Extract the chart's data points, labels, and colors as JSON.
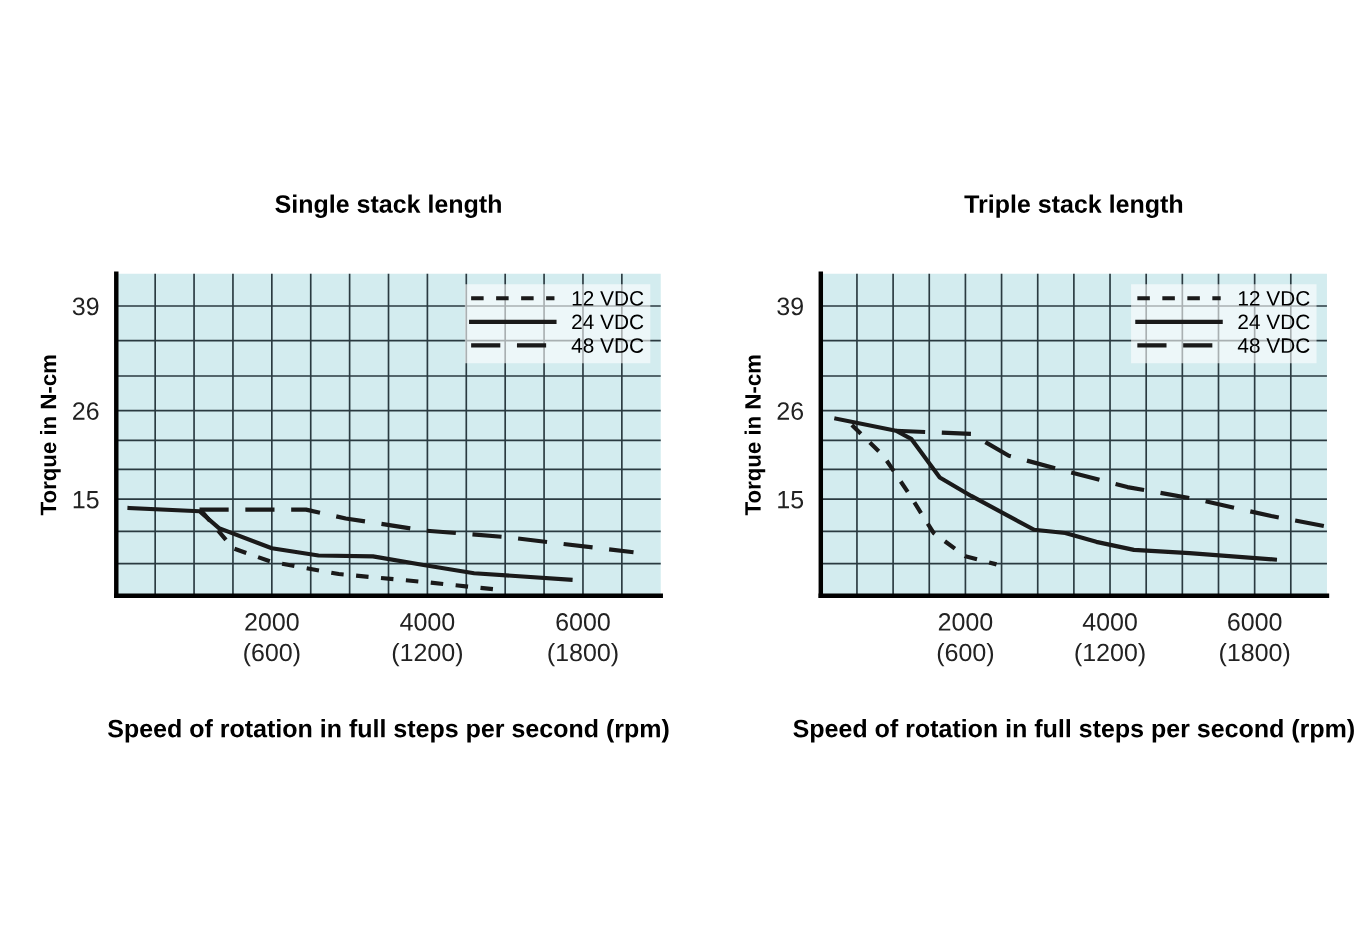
{
  "chart_data": [
    {
      "type": "line",
      "title": "Single stack length",
      "xlabel": "Speed of rotation in full steps per second (rpm)",
      "ylabel": "Torque in N-cm",
      "xlim": [
        0,
        7000
      ],
      "ylim": [
        3,
        43
      ],
      "xticks": [
        {
          "value": 500,
          "label": null
        },
        {
          "value": 1000,
          "label": null
        },
        {
          "value": 1500,
          "label": null
        },
        2000,
        {
          "value": 2500,
          "label": null
        },
        {
          "value": 3000,
          "label": null
        },
        {
          "value": 3500,
          "label": null
        },
        4000,
        {
          "value": 4500,
          "label": null
        },
        {
          "value": 5000,
          "label": null
        },
        {
          "value": 5500,
          "label": null
        },
        6000,
        {
          "value": 6500,
          "label": null
        }
      ],
      "x2lim": [
        0,
        2100
      ],
      "x2ticks": [
        {
          "value": 600,
          "label": "(600)"
        },
        {
          "value": 1200,
          "label": "(1200)"
        },
        {
          "value": 1800,
          "label": "(1800)"
        }
      ],
      "yticks": [
        {
          "value": 7,
          "label": null
        },
        {
          "value": 11,
          "label": null
        },
        15,
        {
          "value": 18.7,
          "label": null
        },
        {
          "value": 22.3,
          "label": null
        },
        26,
        {
          "value": 30.3,
          "label": null
        },
        {
          "value": 34.7,
          "label": null
        },
        39
      ],
      "grid": true,
      "legend": "top right",
      "marker": "none",
      "series": [
        {
          "name": "12 VDC",
          "color": "#1a1a1a",
          "line_style": "dotted",
          "x": [
            1100,
            1500,
            2000,
            2860,
            3970,
            4860
          ],
          "values": [
            13.5,
            8.9,
            7.2,
            5.7,
            4.7,
            3.8
          ]
        },
        {
          "name": "24 VDC",
          "color": "#1a1a1a",
          "line_style": "solid",
          "x": [
            170,
            1070,
            1320,
            2000,
            2600,
            3300,
            3970,
            4600,
            5840
          ],
          "values": [
            13.9,
            13.5,
            11.4,
            8.9,
            8.0,
            7.9,
            6.8,
            5.8,
            5.0
          ]
        },
        {
          "name": "48 VDC",
          "color": "#1a1a1a",
          "line_style": "dashed",
          "x": [
            1070,
            2440,
            2950,
            3970,
            5000,
            6650
          ],
          "values": [
            13.7,
            13.7,
            12.6,
            11.1,
            10.3,
            8.4
          ]
        }
      ]
    },
    {
      "type": "line",
      "title": "Triple stack length",
      "xlabel": "Speed of rotation in full steps per second (rpm)",
      "ylabel": "Torque in N-cm",
      "xlim": [
        0,
        7000
      ],
      "ylim": [
        3,
        43
      ],
      "xticks": [
        {
          "value": 500,
          "label": null
        },
        {
          "value": 1000,
          "label": null
        },
        {
          "value": 1500,
          "label": null
        },
        2000,
        {
          "value": 2500,
          "label": null
        },
        {
          "value": 3000,
          "label": null
        },
        {
          "value": 3500,
          "label": null
        },
        4000,
        {
          "value": 4500,
          "label": null
        },
        {
          "value": 5000,
          "label": null
        },
        {
          "value": 5500,
          "label": null
        },
        6000,
        {
          "value": 6500,
          "label": null
        }
      ],
      "x2lim": [
        0,
        2100
      ],
      "x2ticks": [
        {
          "value": 600,
          "label": "(600)"
        },
        {
          "value": 1200,
          "label": "(1200)"
        },
        {
          "value": 1800,
          "label": "(1800)"
        }
      ],
      "yticks": [
        {
          "value": 7,
          "label": null
        },
        {
          "value": 11,
          "label": null
        },
        15,
        {
          "value": 18.7,
          "label": null
        },
        {
          "value": 22.3,
          "label": null
        },
        26,
        {
          "value": 30.3,
          "label": null
        },
        {
          "value": 34.7,
          "label": null
        },
        39
      ],
      "grid": true,
      "legend": "top right",
      "marker": "none",
      "series": [
        {
          "name": "12 VDC",
          "color": "#1a1a1a",
          "line_style": "dotted",
          "x": [
            430,
            865,
            1210,
            1560,
            2000,
            2430
          ],
          "values": [
            24.2,
            20.4,
            15.8,
            10.8,
            7.9,
            6.9
          ]
        },
        {
          "name": "24 VDC",
          "color": "#1a1a1a",
          "line_style": "solid",
          "x": [
            215,
            1040,
            1250,
            1645,
            2080,
            2950,
            3380,
            3810,
            4330,
            5100,
            6280
          ],
          "values": [
            25.0,
            23.5,
            22.5,
            17.7,
            15.4,
            11.2,
            10.8,
            9.7,
            8.7,
            8.3,
            7.5
          ]
        },
        {
          "name": "48 VDC",
          "color": "#1a1a1a",
          "line_style": "dashed",
          "x": [
            1040,
            2080,
            2600,
            3380,
            4240,
            5190,
            6230,
            7000
          ],
          "values": [
            23.5,
            23.1,
            20.4,
            18.5,
            16.5,
            15.0,
            12.9,
            11.6
          ]
        }
      ]
    }
  ]
}
